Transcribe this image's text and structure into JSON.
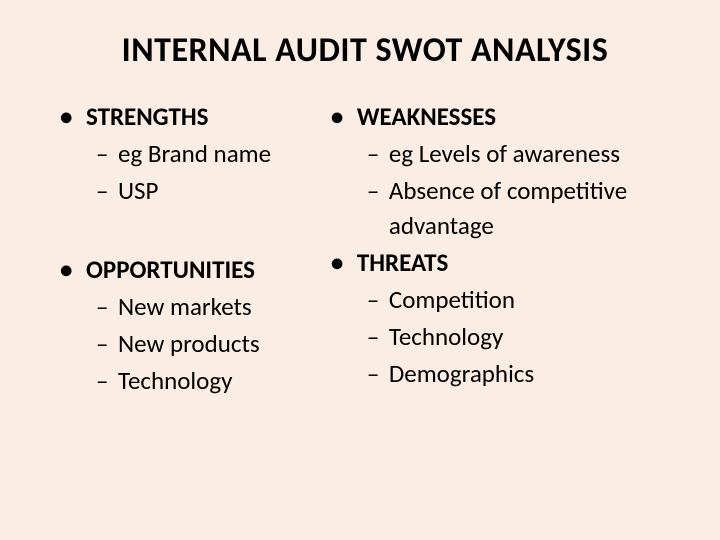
{
  "title": "INTERNAL AUDIT SWOT ANALYSIS",
  "colors": {
    "background": "#faeee4",
    "text": "#000000"
  },
  "left": {
    "sec1": {
      "heading": "STRENGTHS",
      "items": [
        "eg Brand name",
        "USP"
      ]
    },
    "sec2": {
      "heading": "OPPORTUNITIES",
      "items": [
        "New markets",
        "New products",
        "Technology"
      ]
    }
  },
  "right": {
    "sec1": {
      "heading": "WEAKNESSES",
      "items": [
        "eg Levels of awareness",
        "Absence of competitive advantage"
      ]
    },
    "sec2": {
      "heading": "THREATS",
      "items": [
        "Competition",
        "Technology",
        "Demographics"
      ]
    }
  }
}
